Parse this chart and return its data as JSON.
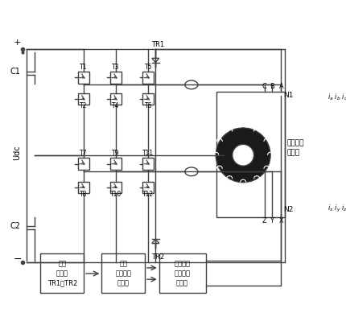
{
  "title": "",
  "bg_color": "#ffffff",
  "line_color": "#404040",
  "text_color": "#000000",
  "figsize": [
    4.3,
    3.99
  ],
  "dpi": 100,
  "box_labels": {
    "diode_block": "双向\n晶闸管\nTR1、TR2",
    "fault_handler": "变组\n开路故障\n处理器",
    "gray_diag": "灰色预测\n开路故障\n诊断器"
  },
  "terminal_labels": {
    "plus": "+",
    "minus": "−",
    "udc": "Udc",
    "c1": "C1",
    "c2": "C2",
    "tr1": "TR1",
    "tr2": "TR2",
    "motor_label": "双绕组永\n磁电机",
    "n1": "N1",
    "n2": "N2",
    "phase_top": [
      "A",
      "B",
      "C"
    ],
    "phase_bot": [
      "X",
      "Y",
      "Z"
    ],
    "current_top": "i_a  i_b  i_c",
    "current_bot": "i_x  i_y  i_z"
  }
}
